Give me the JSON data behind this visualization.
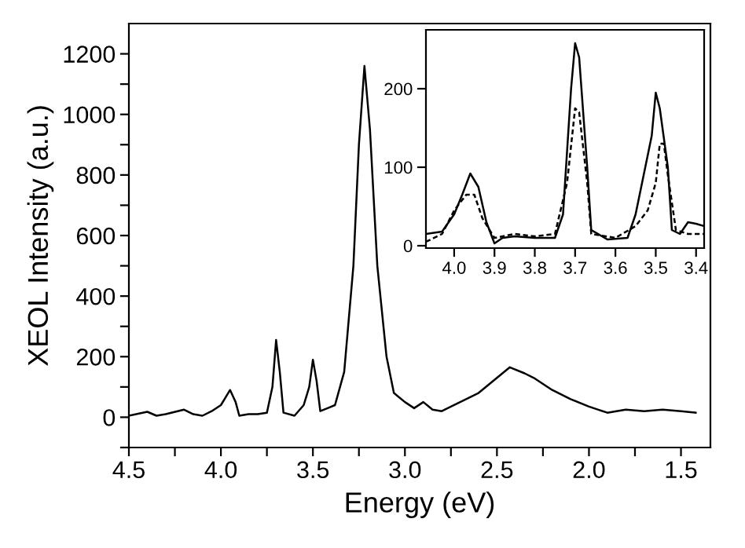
{
  "chart_data": [
    {
      "type": "line",
      "xlabel": "Energy (eV)",
      "ylabel": "XEOL Intensity (a.u.)",
      "xlim": [
        4.5,
        1.34
      ],
      "ylim": [
        -100,
        1300
      ],
      "xticks": [
        4.5,
        {
          "value": 4.25,
          "label": null
        },
        {
          "value": 4,
          "label": "4.0"
        },
        {
          "value": 3.75,
          "label": null
        },
        3.5,
        {
          "value": 3.25,
          "label": null
        },
        {
          "value": 3,
          "label": "3.0"
        },
        {
          "value": 2.75,
          "label": null
        },
        2.5,
        {
          "value": 2.25,
          "label": null
        },
        {
          "value": 2,
          "label": "2.0"
        },
        {
          "value": 1.75,
          "label": null
        },
        1.5
      ],
      "yticks": [
        {
          "value": -100,
          "label": null
        },
        0,
        {
          "value": 100,
          "label": null
        },
        200,
        {
          "value": 300,
          "label": null
        },
        400,
        {
          "value": 500,
          "label": null
        },
        600,
        {
          "value": 700,
          "label": null
        },
        800,
        {
          "value": 900,
          "label": null
        },
        1000,
        {
          "value": 1100,
          "label": null
        },
        1200
      ],
      "grid": false,
      "legend": false,
      "series": [
        {
          "color": "#000000",
          "line_style": "solid",
          "x": [
            4.5,
            4.4,
            4.35,
            4.3,
            4.2,
            4.15,
            4.1,
            4.05,
            4.0,
            3.95,
            3.92,
            3.9,
            3.85,
            3.8,
            3.75,
            3.72,
            3.7,
            3.68,
            3.66,
            3.6,
            3.55,
            3.52,
            3.5,
            3.48,
            3.46,
            3.42,
            3.38,
            3.33,
            3.28,
            3.25,
            3.22,
            3.19,
            3.15,
            3.1,
            3.06,
            3.0,
            2.95,
            2.9,
            2.85,
            2.8,
            2.7,
            2.6,
            2.5,
            2.43,
            2.35,
            2.3,
            2.2,
            2.1,
            2.0,
            1.9,
            1.8,
            1.7,
            1.6,
            1.5,
            1.42
          ],
          "values": [
            5,
            18,
            5,
            10,
            25,
            10,
            5,
            20,
            40,
            90,
            50,
            5,
            10,
            10,
            15,
            100,
            255,
            150,
            15,
            5,
            40,
            100,
            190,
            120,
            20,
            30,
            40,
            150,
            500,
            900,
            1160,
            950,
            500,
            200,
            80,
            50,
            30,
            50,
            25,
            20,
            50,
            80,
            130,
            165,
            145,
            130,
            90,
            60,
            35,
            15,
            25,
            20,
            25,
            20,
            15
          ]
        }
      ]
    },
    {
      "type": "line",
      "xlim": [
        4.07,
        3.38
      ],
      "ylim": [
        -3,
        275
      ],
      "xticks": [
        {
          "value": 4,
          "label": "4.0"
        },
        3.9,
        3.8,
        3.7,
        3.6,
        3.5,
        3.4
      ],
      "yticks": [
        0,
        100,
        200
      ],
      "grid": false,
      "legend": false,
      "series": [
        {
          "color": "#000000",
          "line_style": "solid",
          "x": [
            4.07,
            4.03,
            4.0,
            3.98,
            3.96,
            3.94,
            3.92,
            3.9,
            3.88,
            3.85,
            3.8,
            3.75,
            3.73,
            3.71,
            3.7,
            3.69,
            3.67,
            3.66,
            3.62,
            3.57,
            3.55,
            3.53,
            3.51,
            3.5,
            3.49,
            3.47,
            3.46,
            3.44,
            3.42,
            3.4,
            3.38
          ],
          "values": [
            15,
            18,
            40,
            65,
            92,
            75,
            30,
            3,
            10,
            12,
            10,
            10,
            40,
            200,
            258,
            240,
            100,
            20,
            8,
            10,
            40,
            90,
            140,
            195,
            175,
            100,
            20,
            15,
            30,
            28,
            25
          ]
        },
        {
          "color": "#000000",
          "line_style": "dashed",
          "x": [
            4.07,
            4.03,
            4.0,
            3.97,
            3.95,
            3.93,
            3.9,
            3.85,
            3.8,
            3.75,
            3.72,
            3.7,
            3.69,
            3.67,
            3.66,
            3.6,
            3.55,
            3.52,
            3.5,
            3.49,
            3.48,
            3.47,
            3.45,
            3.42,
            3.38
          ],
          "values": [
            5,
            15,
            45,
            65,
            65,
            35,
            10,
            15,
            12,
            15,
            80,
            175,
            170,
            80,
            15,
            10,
            25,
            45,
            80,
            130,
            130,
            90,
            20,
            15,
            15
          ]
        }
      ]
    }
  ]
}
